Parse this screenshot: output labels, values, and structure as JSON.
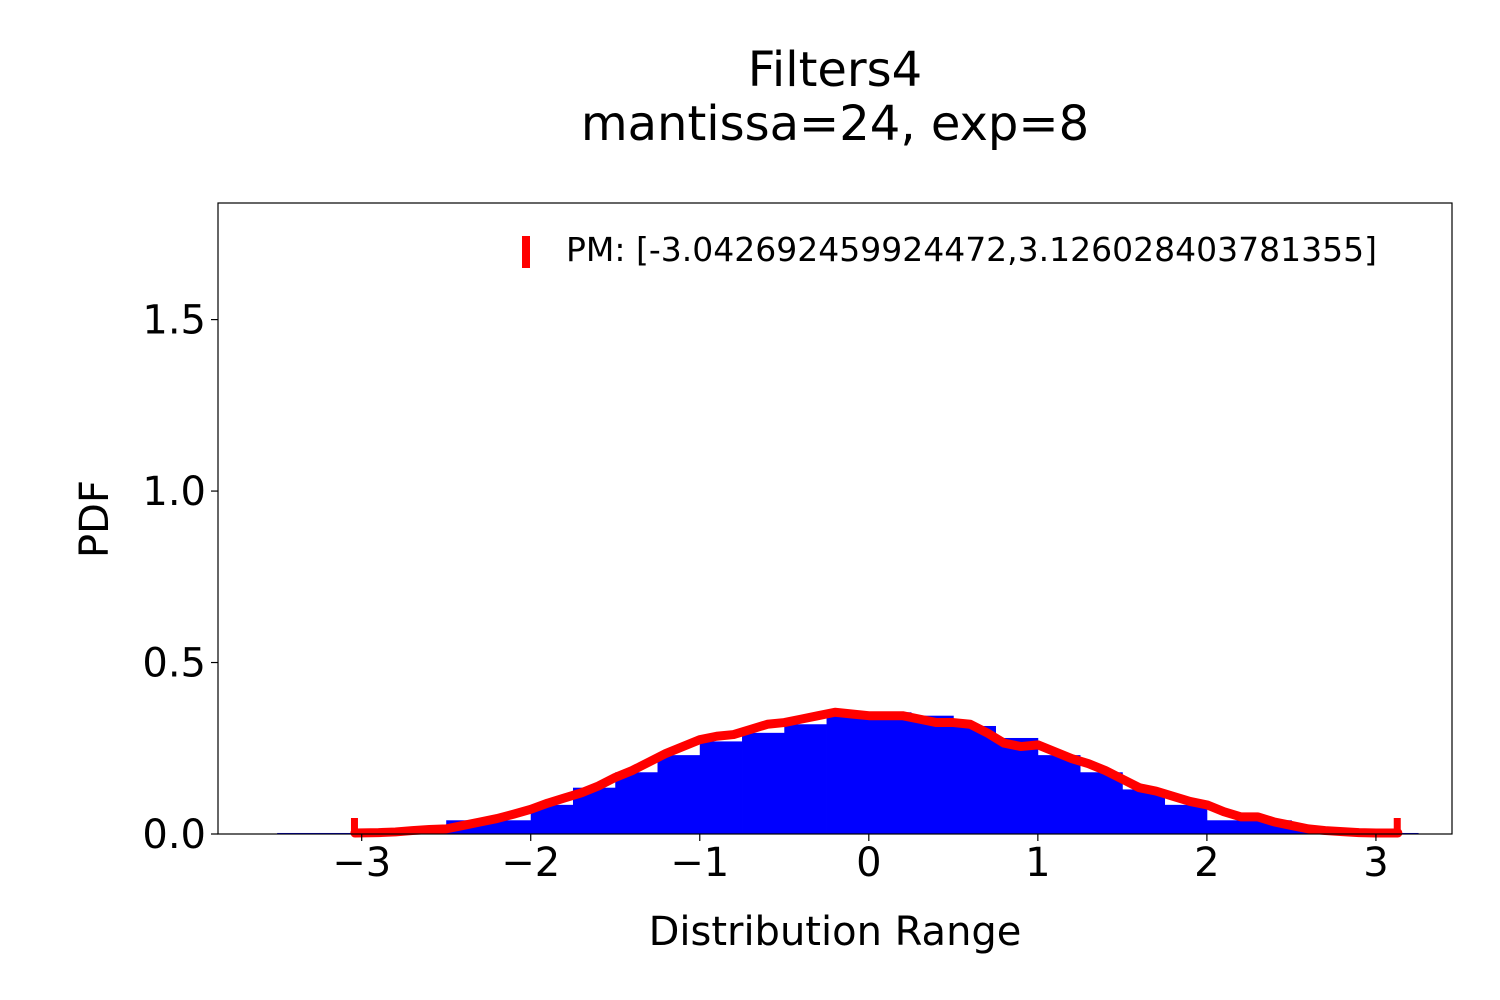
{
  "chart_data": {
    "type": "bar",
    "title": "Filters4",
    "subtitle": "mantissa=24, exp=8",
    "xlabel": "Distribution Range",
    "ylabel": "PDF",
    "xlim": [
      -3.85,
      3.45
    ],
    "ylim": [
      0,
      1.84
    ],
    "xticks": [
      {
        "value": -3,
        "label": "−3"
      },
      {
        "value": -2,
        "label": "−2"
      },
      {
        "value": -1,
        "label": "−1"
      },
      {
        "value": 0,
        "label": "0"
      },
      {
        "value": 1,
        "label": "1"
      },
      {
        "value": 2,
        "label": "2"
      },
      {
        "value": 3,
        "label": "3"
      }
    ],
    "yticks": [
      {
        "value": 0,
        "label": "0.0"
      },
      {
        "value": 0.5,
        "label": "0.5"
      },
      {
        "value": 1.0,
        "label": "1.0"
      },
      {
        "value": 1.5,
        "label": "1.5"
      }
    ],
    "grid": false,
    "legend_position": "top-right",
    "histogram": {
      "color": "#0000ff",
      "bin_edges": [
        -3.5,
        -3.25,
        -3.0,
        -2.75,
        -2.5,
        -2.25,
        -2.0,
        -1.75,
        -1.5,
        -1.25,
        -1.0,
        -0.75,
        -0.5,
        -0.25,
        0.0,
        0.25,
        0.5,
        0.75,
        1.0,
        1.25,
        1.5,
        1.75,
        2.0,
        2.25,
        2.5,
        2.75,
        3.0,
        3.25
      ],
      "values": [
        0.003,
        0.003,
        0.008,
        0.015,
        0.04,
        0.04,
        0.085,
        0.135,
        0.18,
        0.23,
        0.27,
        0.295,
        0.32,
        0.345,
        0.355,
        0.345,
        0.315,
        0.28,
        0.23,
        0.18,
        0.13,
        0.085,
        0.04,
        0.04,
        0.015,
        0.008,
        0.003
      ]
    },
    "series": [
      {
        "name": "PM: [-3.042692459924472,3.126028403781355]",
        "color": "#ff0000",
        "x": [
          -3.04,
          -2.9,
          -2.8,
          -2.7,
          -2.6,
          -2.5,
          -2.4,
          -2.3,
          -2.2,
          -2.1,
          -2.0,
          -1.9,
          -1.8,
          -1.7,
          -1.6,
          -1.5,
          -1.4,
          -1.3,
          -1.2,
          -1.1,
          -1.0,
          -0.9,
          -0.8,
          -0.7,
          -0.6,
          -0.5,
          -0.4,
          -0.3,
          -0.2,
          -0.1,
          0.0,
          0.1,
          0.2,
          0.3,
          0.4,
          0.5,
          0.6,
          0.7,
          0.8,
          0.9,
          1.0,
          1.1,
          1.2,
          1.3,
          1.4,
          1.5,
          1.6,
          1.7,
          1.8,
          1.9,
          2.0,
          2.1,
          2.2,
          2.3,
          2.4,
          2.5,
          2.6,
          2.7,
          2.8,
          2.9,
          3.0,
          3.13
        ],
        "y": [
          0.003,
          0.004,
          0.006,
          0.01,
          0.013,
          0.015,
          0.025,
          0.035,
          0.045,
          0.058,
          0.072,
          0.09,
          0.105,
          0.12,
          0.14,
          0.165,
          0.185,
          0.21,
          0.235,
          0.255,
          0.275,
          0.285,
          0.29,
          0.305,
          0.32,
          0.325,
          0.335,
          0.345,
          0.355,
          0.35,
          0.345,
          0.345,
          0.345,
          0.335,
          0.325,
          0.325,
          0.32,
          0.295,
          0.265,
          0.255,
          0.26,
          0.24,
          0.22,
          0.205,
          0.185,
          0.16,
          0.135,
          0.125,
          0.11,
          0.095,
          0.085,
          0.065,
          0.05,
          0.05,
          0.035,
          0.025,
          0.015,
          0.01,
          0.007,
          0.004,
          0.003,
          0.003
        ]
      }
    ],
    "range_markers": [
      -3.042692459924472,
      3.126028403781355
    ]
  }
}
